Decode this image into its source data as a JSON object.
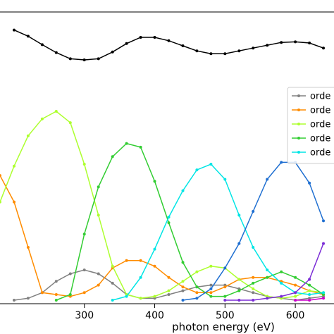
{
  "chart_data": [
    {
      "panel": "top",
      "type": "line",
      "xlim": [
        180,
        655
      ],
      "ylim": [
        0,
        1
      ],
      "grid": false,
      "series": [
        {
          "color": "#000000",
          "x": [
            200,
            220,
            240,
            260,
            280,
            300,
            320,
            340,
            360,
            380,
            400,
            420,
            440,
            460,
            480,
            500,
            520,
            540,
            560,
            580,
            600,
            620,
            640
          ],
          "values": [
            0.78,
            0.67,
            0.52,
            0.38,
            0.27,
            0.25,
            0.27,
            0.39,
            0.54,
            0.65,
            0.65,
            0.59,
            0.5,
            0.41,
            0.36,
            0.36,
            0.41,
            0.46,
            0.51,
            0.56,
            0.57,
            0.55,
            0.46
          ]
        }
      ]
    },
    {
      "panel": "bottom",
      "type": "line",
      "xlabel": "photon energy (eV)",
      "xlim": [
        180,
        655
      ],
      "ylim": [
        0,
        1
      ],
      "xticks": [
        300,
        400,
        500,
        600
      ],
      "grid": false,
      "legend": "right",
      "series": [
        {
          "name": "orde",
          "color": "#808080",
          "x": [
            200,
            220,
            240,
            260,
            280,
            300,
            320,
            340,
            360,
            380,
            400,
            420,
            440,
            460,
            480,
            500,
            520,
            540,
            560,
            580,
            600,
            620,
            640
          ],
          "values": [
            0.0,
            0.01,
            0.04,
            0.1,
            0.14,
            0.16,
            0.14,
            0.09,
            0.03,
            0.01,
            0.01,
            0.03,
            0.05,
            0.07,
            0.08,
            0.08,
            0.06,
            0.04,
            0.02,
            0.01,
            0.0,
            0.01,
            0.02
          ]
        },
        {
          "name": "orde",
          "color": "#ff8c00",
          "x": [
            180,
            200,
            220,
            240,
            260,
            280,
            300,
            320,
            340,
            360,
            380,
            400,
            420,
            440,
            460,
            480,
            500,
            520,
            540,
            560,
            580,
            600,
            620,
            640
          ],
          "values": [
            0.66,
            0.52,
            0.28,
            0.04,
            0.03,
            0.02,
            0.04,
            0.08,
            0.17,
            0.21,
            0.21,
            0.18,
            0.12,
            0.07,
            0.04,
            0.04,
            0.07,
            0.11,
            0.12,
            0.12,
            0.1,
            0.08,
            0.05,
            0.03
          ]
        },
        {
          "name": "orde",
          "color": "#adff2f",
          "x": [
            180,
            200,
            220,
            240,
            260,
            280,
            300,
            320,
            340,
            360,
            380,
            400,
            420,
            440,
            460,
            480,
            500,
            520,
            540,
            560,
            580,
            600,
            620,
            640
          ],
          "values": [
            0.52,
            0.71,
            0.87,
            0.96,
            1.0,
            0.94,
            0.72,
            0.45,
            0.18,
            0.03,
            0.01,
            0.02,
            0.05,
            0.1,
            0.15,
            0.18,
            0.17,
            0.11,
            0.06,
            0.02,
            0.01,
            0.02,
            0.05,
            0.04
          ]
        },
        {
          "name": "orde",
          "color": "#32cd32",
          "x": [
            260,
            280,
            300,
            320,
            340,
            360,
            380,
            400,
            420,
            440,
            460,
            480,
            500,
            520,
            540,
            560,
            580,
            600,
            620,
            640
          ],
          "values": [
            0.0,
            0.03,
            0.35,
            0.6,
            0.76,
            0.83,
            0.81,
            0.63,
            0.41,
            0.2,
            0.07,
            0.02,
            0.02,
            0.05,
            0.09,
            0.12,
            0.15,
            0.12,
            0.08,
            0.03
          ]
        },
        {
          "name": "orde",
          "color": "#00e5e5",
          "x": [
            340,
            360,
            380,
            400,
            420,
            440,
            460,
            480,
            500,
            520,
            540,
            560,
            580,
            600,
            620,
            640
          ],
          "values": [
            0.0,
            0.02,
            0.12,
            0.27,
            0.44,
            0.58,
            0.69,
            0.72,
            0.64,
            0.45,
            0.28,
            0.16,
            0.09,
            0.04,
            0.03,
            0.04
          ]
        },
        {
          "color": "#1f6fd1",
          "x": [
            440,
            460,
            480,
            500,
            520,
            540,
            560,
            580,
            600,
            620,
            640
          ],
          "values": [
            0.0,
            0.01,
            0.06,
            0.17,
            0.3,
            0.47,
            0.64,
            0.73,
            0.73,
            0.62,
            0.42
          ]
        },
        {
          "color": "#7b2cd6",
          "x": [
            500,
            520,
            540,
            560,
            580,
            600,
            620,
            640
          ],
          "values": [
            0.0,
            0.0,
            0.0,
            0.01,
            0.02,
            0.04,
            0.11,
            0.3
          ]
        },
        {
          "color": "#cc00cc",
          "x": [
            600,
            620,
            640
          ],
          "values": [
            0.0,
            0.0,
            0.01
          ]
        }
      ]
    }
  ]
}
